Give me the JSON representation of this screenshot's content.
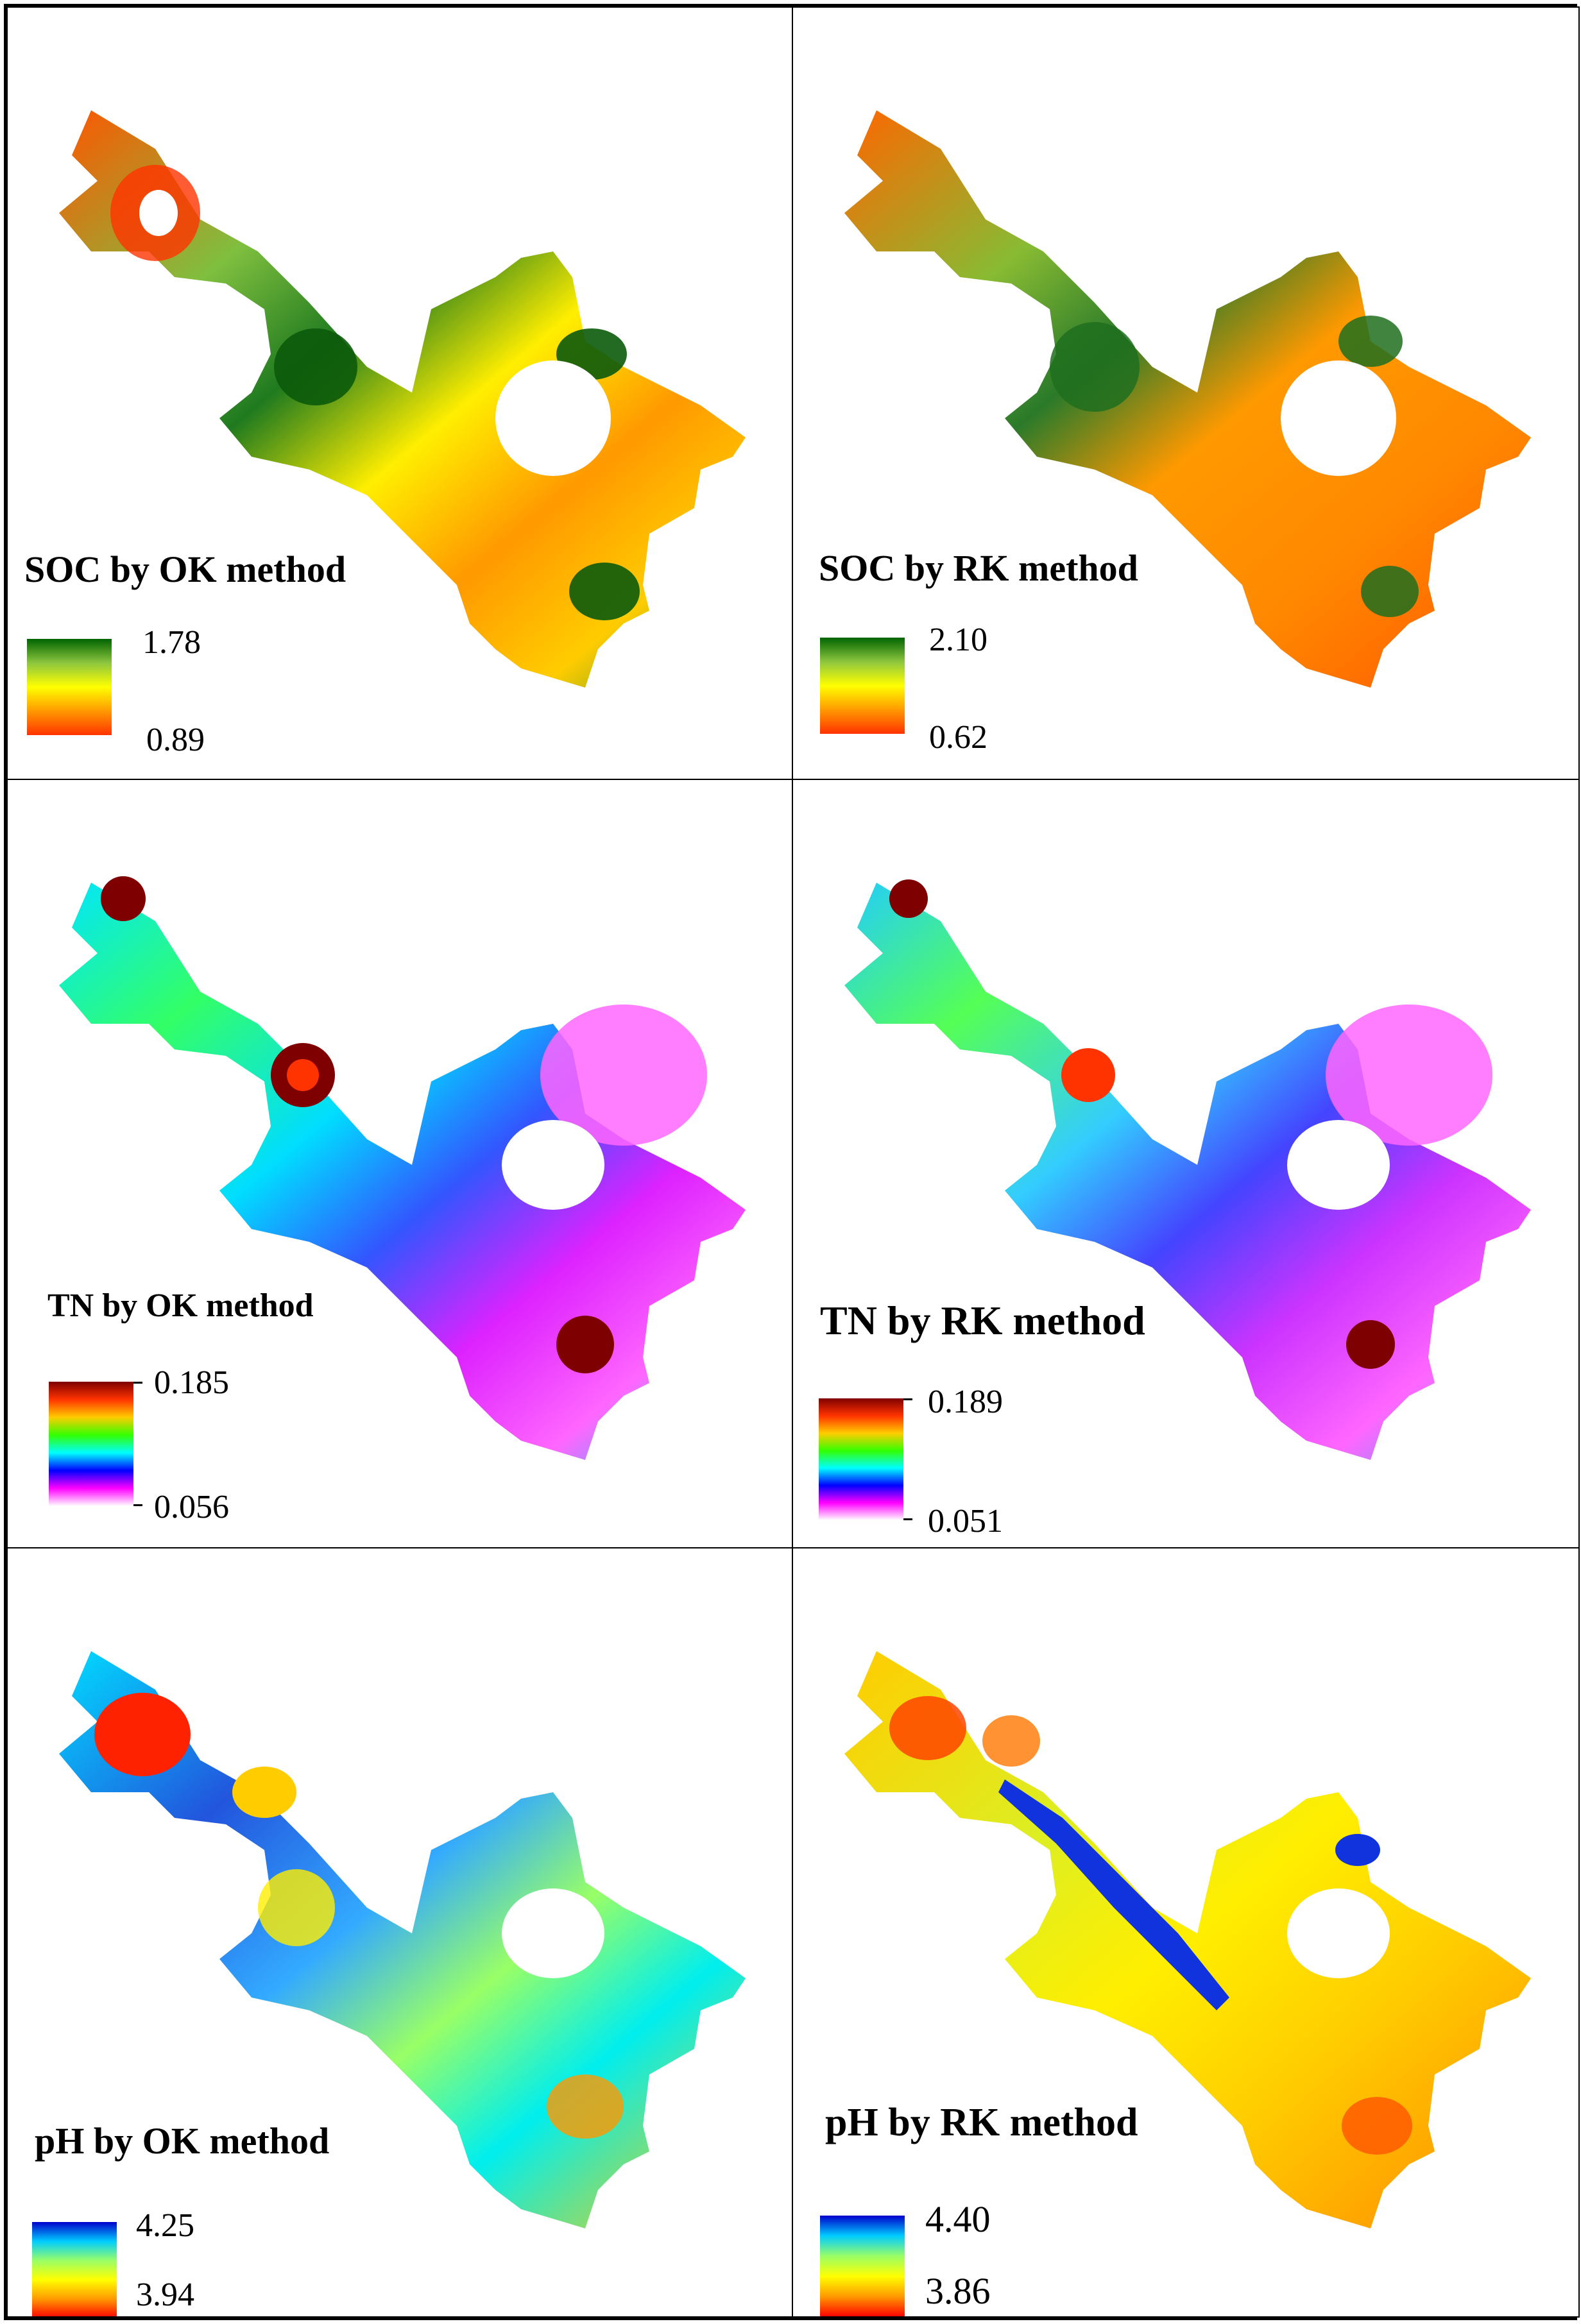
{
  "figure": {
    "panels": [
      {
        "id": "soc-ok",
        "title": "SOC by OK method",
        "max": "1.78",
        "min": "0.89",
        "ramp": "soc"
      },
      {
        "id": "soc-rk",
        "title": "SOC by RK method",
        "max": "2.10",
        "min": "0.62",
        "ramp": "soc"
      },
      {
        "id": "tn-ok",
        "title": "TN by OK method",
        "max": "0.185",
        "min": "0.056",
        "ramp": "tn"
      },
      {
        "id": "tn-rk",
        "title": "TN by RK method",
        "max": "0.189",
        "min": "0.051",
        "ramp": "tn"
      },
      {
        "id": "ph-ok",
        "title": "pH by OK method",
        "max": "4.25",
        "min": "3.94",
        "ramp": "ph"
      },
      {
        "id": "ph-rk",
        "title": "pH by RK method",
        "max": "4.40",
        "min": "3.86",
        "ramp": "ph"
      }
    ]
  },
  "colors": {
    "soc": [
      "#006400",
      "#8dc63f",
      "#ffff00",
      "#ff9900",
      "#ff3300"
    ],
    "tn": [
      "#7f0000",
      "#ff3300",
      "#ffcc00",
      "#33ff00",
      "#00ffff",
      "#0000ff",
      "#ff00ff",
      "#ffffff"
    ],
    "ph": [
      "#0000cc",
      "#00ccff",
      "#99ff66",
      "#ffff00",
      "#ff9900",
      "#ff0000"
    ]
  }
}
